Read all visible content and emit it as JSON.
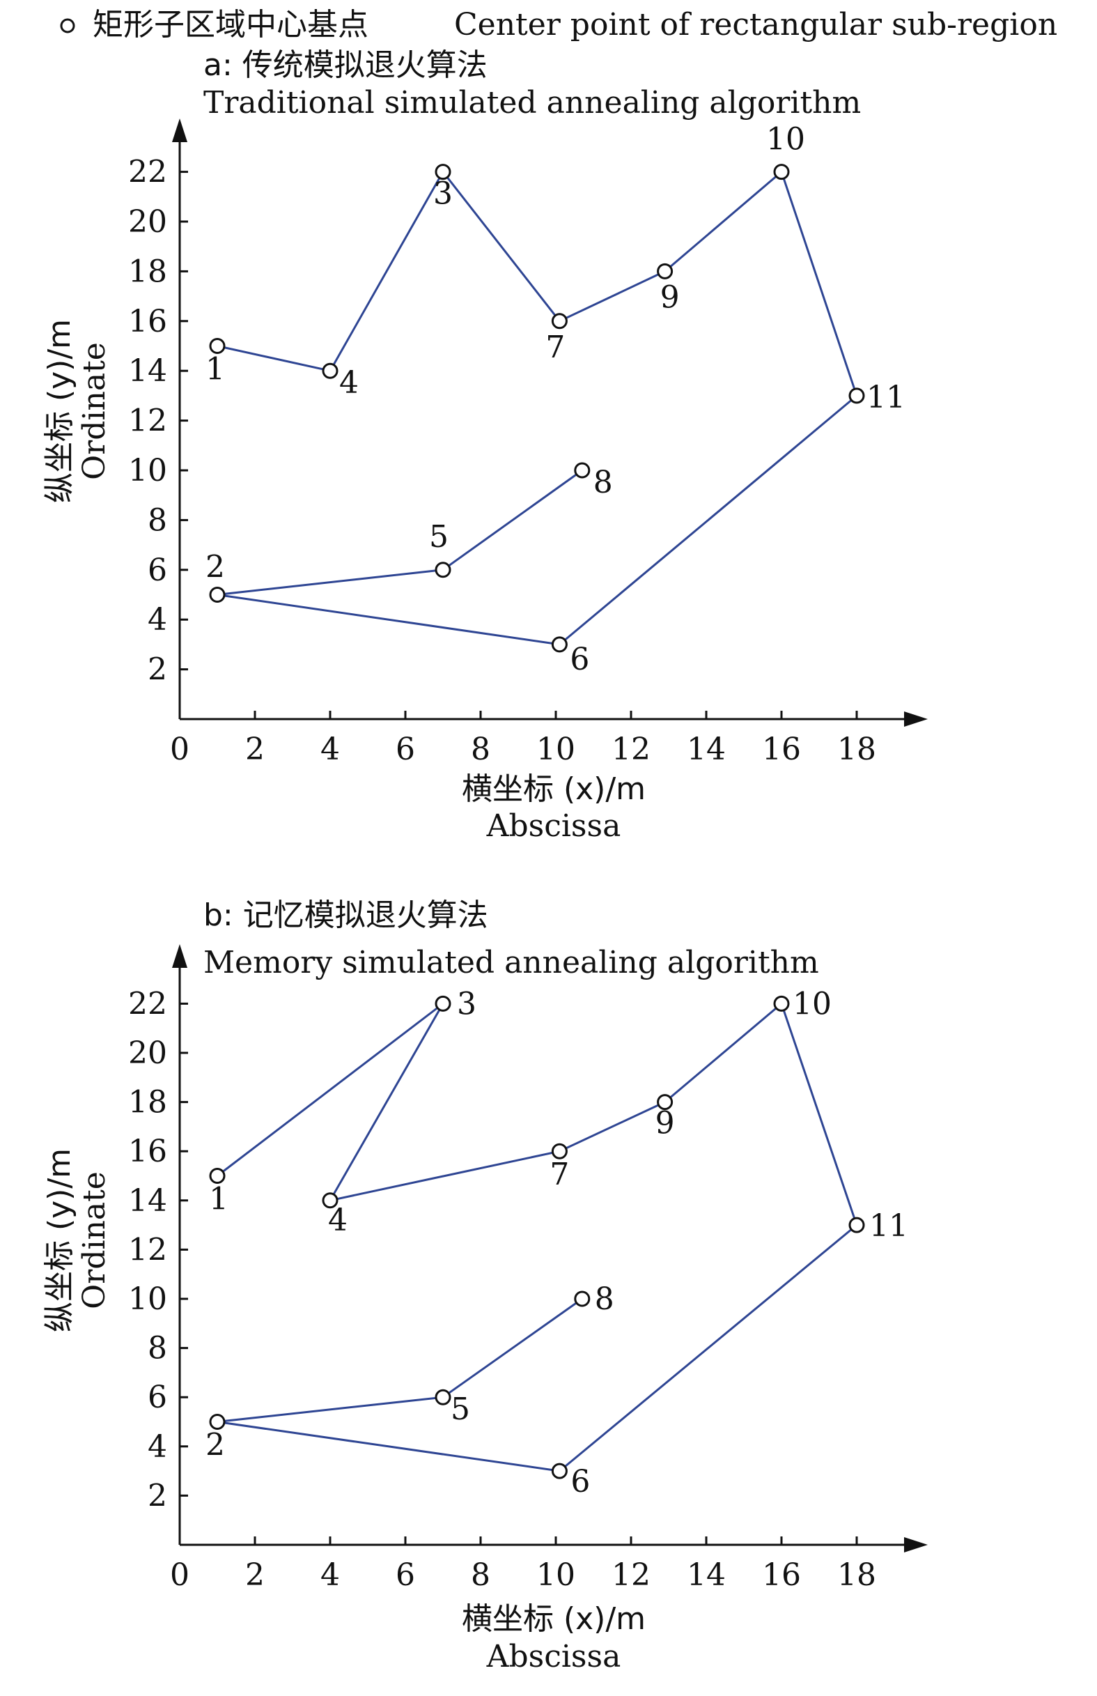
{
  "legend": {
    "marker_label": "矩形子区域中心基点",
    "marker_label_en": "Center point of rectangular sub-region"
  },
  "colors": {
    "line": "#2e4593",
    "marker_stroke": "#111111",
    "axis": "#111111",
    "text": "#111111"
  },
  "chart_data": [
    {
      "type": "line",
      "panel": "a",
      "title": "a: 传统模拟退火算法",
      "subtitle": "Traditional simulated annealing algorithm",
      "xlabel": "横坐标 (x)/m",
      "xlabel_en": "Abscissa",
      "ylabel": "纵坐标 (y)/m",
      "ylabel_en": "Ordinate",
      "xlim": [
        0,
        19.5
      ],
      "ylim": [
        0,
        23.5
      ],
      "xticks": [
        0,
        2,
        4,
        6,
        8,
        10,
        12,
        14,
        16,
        18
      ],
      "yticks": [
        2,
        4,
        6,
        8,
        10,
        12,
        14,
        16,
        18,
        20,
        22
      ],
      "points": [
        {
          "id": "1",
          "x": 1,
          "y": 15
        },
        {
          "id": "2",
          "x": 1,
          "y": 5
        },
        {
          "id": "3",
          "x": 7,
          "y": 22
        },
        {
          "id": "4",
          "x": 4,
          "y": 14
        },
        {
          "id": "5",
          "x": 7,
          "y": 6
        },
        {
          "id": "6",
          "x": 10.1,
          "y": 3
        },
        {
          "id": "7",
          "x": 10.1,
          "y": 16
        },
        {
          "id": "8",
          "x": 10.7,
          "y": 10
        },
        {
          "id": "9",
          "x": 12.9,
          "y": 18
        },
        {
          "id": "10",
          "x": 16,
          "y": 22
        },
        {
          "id": "11",
          "x": 18,
          "y": 13
        }
      ],
      "route": [
        "1",
        "4",
        "3",
        "7",
        "9",
        "10",
        "11",
        "6",
        "2",
        "5",
        "8"
      ]
    },
    {
      "type": "line",
      "panel": "b",
      "title": "b: 记忆模拟退火算法",
      "subtitle": "Memory simulated annealing algorithm",
      "xlabel": "横坐标 (x)/m",
      "xlabel_en": "Abscissa",
      "ylabel": "纵坐标 (y)/m",
      "ylabel_en": "Ordinate",
      "xlim": [
        0,
        19.5
      ],
      "ylim": [
        0,
        23.5
      ],
      "xticks": [
        0,
        2,
        4,
        6,
        8,
        10,
        12,
        14,
        16,
        18
      ],
      "yticks": [
        2,
        4,
        6,
        8,
        10,
        12,
        14,
        16,
        18,
        20,
        22
      ],
      "points": [
        {
          "id": "1",
          "x": 1,
          "y": 15
        },
        {
          "id": "2",
          "x": 1,
          "y": 5
        },
        {
          "id": "3",
          "x": 7,
          "y": 22
        },
        {
          "id": "4",
          "x": 4,
          "y": 14
        },
        {
          "id": "5",
          "x": 7,
          "y": 6
        },
        {
          "id": "6",
          "x": 10.1,
          "y": 3
        },
        {
          "id": "7",
          "x": 10.1,
          "y": 16
        },
        {
          "id": "8",
          "x": 10.7,
          "y": 10
        },
        {
          "id": "9",
          "x": 12.9,
          "y": 18
        },
        {
          "id": "10",
          "x": 16,
          "y": 22
        },
        {
          "id": "11",
          "x": 18,
          "y": 13
        }
      ],
      "route": [
        "1",
        "3",
        "4",
        "7",
        "9",
        "10",
        "11",
        "6",
        "2",
        "5",
        "8"
      ]
    }
  ]
}
